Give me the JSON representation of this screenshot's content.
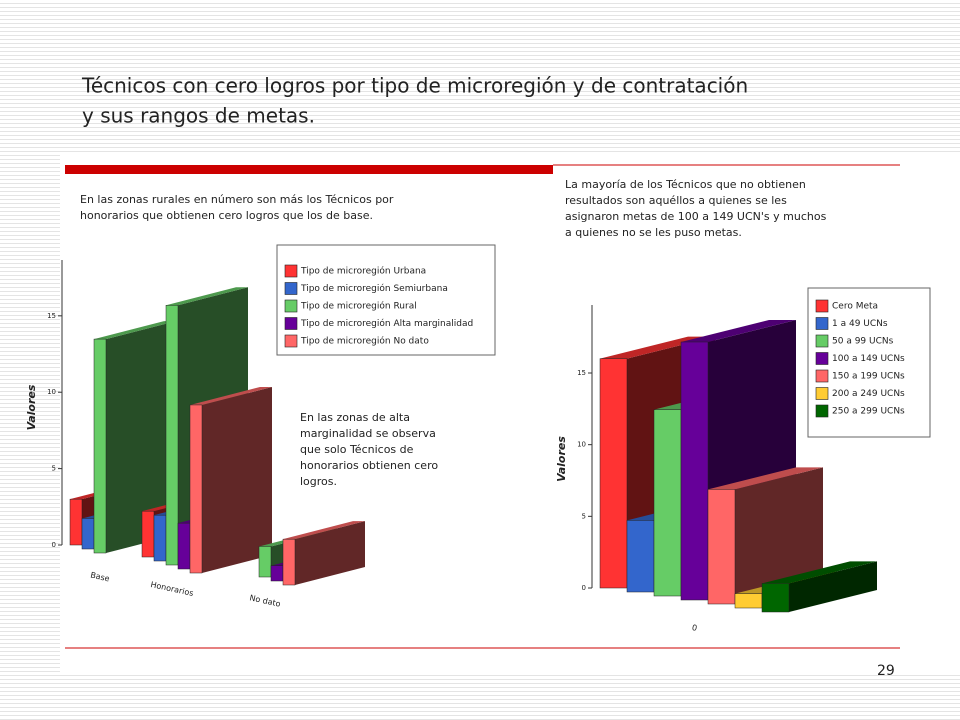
{
  "slide": {
    "title": [
      "Técnicos con cero logros por tipo de microregión y de contratación",
      "y sus rangos de metas."
    ],
    "note_left": [
      "En las zonas rurales en número son más los Técnicos por",
      "honorarios que obtienen cero logros que los de base."
    ],
    "note_right": [
      "La mayoría de los Técnicos que no obtienen",
      "resultados son aquéllos a quienes se les",
      "asignaron metas de 100 a 149 UCN's y muchos",
      "a quienes no se les puso metas."
    ],
    "note_middle": [
      "En las zonas de alta",
      "marginalidad se observa",
      "que solo Técnicos de",
      "honorarios obtienen cero",
      "logros."
    ],
    "page_number": "29"
  },
  "chart_data": [
    {
      "type": "bar3d",
      "y_label": "Valores",
      "categories": [
        "Base",
        "Honorarios",
        "No dato"
      ],
      "series": [
        {
          "name": "Tipo de microregión Urbana",
          "color": "#ff3333",
          "values": [
            3,
            3,
            0
          ]
        },
        {
          "name": "Tipo de microregión Semiurbana",
          "color": "#3366cc",
          "values": [
            2,
            3,
            0
          ]
        },
        {
          "name": "Tipo de microregión Rural",
          "color": "#66cc66",
          "values": [
            14,
            17,
            2
          ]
        },
        {
          "name": "Tipo de microregión Alta marginalidad",
          "color": "#660099",
          "values": [
            0,
            3,
            1
          ]
        },
        {
          "name": "Tipo de microregión No dato",
          "color": "#ff6666",
          "values": [
            0,
            11,
            3
          ]
        }
      ],
      "ylim": [
        0,
        18
      ],
      "yticks": [
        0,
        5,
        10,
        15
      ]
    },
    {
      "type": "bar3d",
      "y_label": "Valores",
      "categories": [
        "0"
      ],
      "series": [
        {
          "name": "Cero Meta",
          "color": "#ff3333",
          "values": [
            16
          ]
        },
        {
          "name": "1 a 49 UCNs",
          "color": "#3366cc",
          "values": [
            5
          ]
        },
        {
          "name": "50 a 99 UCNs",
          "color": "#66cc66",
          "values": [
            13
          ]
        },
        {
          "name": "100 a 149 UCNs",
          "color": "#660099",
          "values": [
            18
          ]
        },
        {
          "name": "150 a 199 UCNs",
          "color": "#ff6666",
          "values": [
            8
          ]
        },
        {
          "name": "200 a 249 UCNs",
          "color": "#ffcc33",
          "values": [
            1
          ]
        },
        {
          "name": "250 a 299 UCNs",
          "color": "#006600",
          "values": [
            2
          ]
        }
      ],
      "ylim": [
        0,
        18
      ],
      "yticks": [
        0,
        5,
        10,
        15
      ]
    }
  ]
}
